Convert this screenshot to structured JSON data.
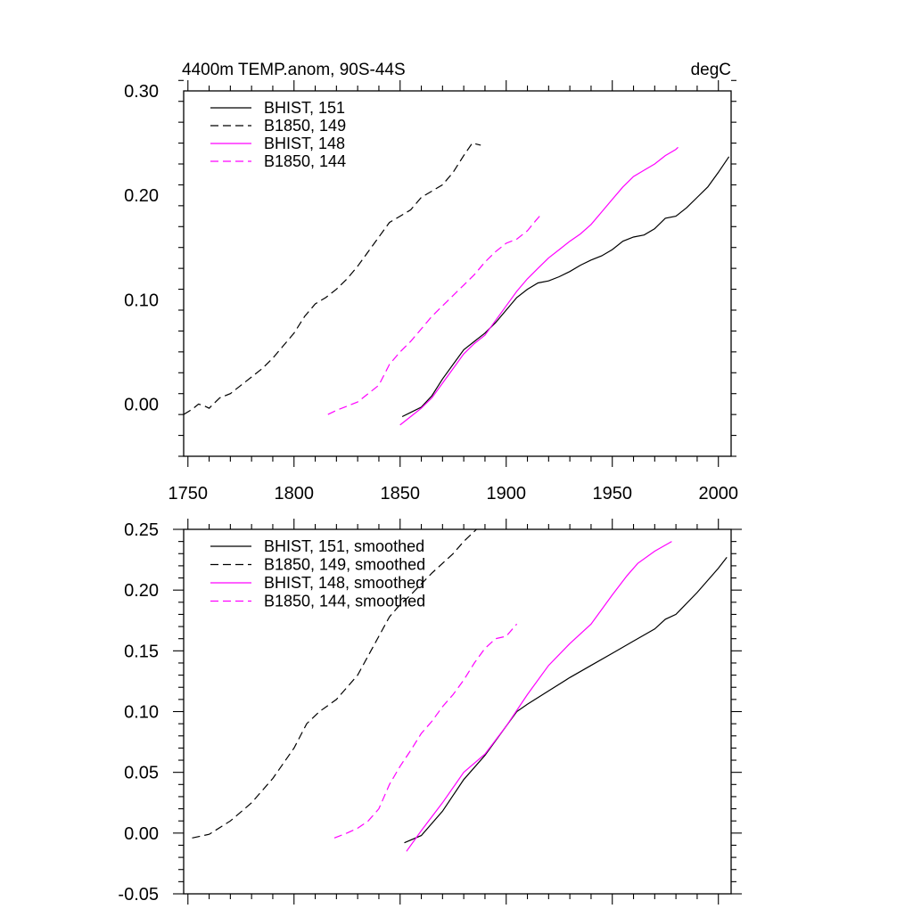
{
  "chart_data": [
    {
      "type": "line",
      "title": "4400m TEMP.anom, 90S-44S",
      "units": "degC",
      "xlim": [
        1748,
        2006
      ],
      "ylim": [
        -0.05,
        0.3
      ],
      "x_ticks": [
        1750,
        1800,
        1850,
        1900,
        1950,
        2000
      ],
      "x_tick_labels": [
        "1750",
        "1800",
        "1850",
        "1900",
        "1950",
        "2000"
      ],
      "y_ticks": [
        0.0,
        0.1,
        0.2,
        0.3
      ],
      "y_tick_labels": [
        "0.00",
        "0.10",
        "0.20",
        "0.30"
      ],
      "grid": false,
      "legend_position": "top-left",
      "series": [
        {
          "name": "BHIST, 151",
          "color": "#000000",
          "dash": "solid",
          "points": [
            [
              1851,
              -0.012
            ],
            [
              1855,
              -0.008
            ],
            [
              1860,
              -0.003
            ],
            [
              1865,
              0.008
            ],
            [
              1870,
              0.024
            ],
            [
              1875,
              0.038
            ],
            [
              1880,
              0.052
            ],
            [
              1885,
              0.06
            ],
            [
              1890,
              0.068
            ],
            [
              1895,
              0.078
            ],
            [
              1900,
              0.09
            ],
            [
              1905,
              0.102
            ],
            [
              1910,
              0.11
            ],
            [
              1915,
              0.116
            ],
            [
              1920,
              0.118
            ],
            [
              1925,
              0.122
            ],
            [
              1930,
              0.127
            ],
            [
              1935,
              0.133
            ],
            [
              1940,
              0.138
            ],
            [
              1945,
              0.142
            ],
            [
              1950,
              0.148
            ],
            [
              1955,
              0.156
            ],
            [
              1960,
              0.16
            ],
            [
              1965,
              0.162
            ],
            [
              1970,
              0.168
            ],
            [
              1975,
              0.178
            ],
            [
              1980,
              0.18
            ],
            [
              1985,
              0.188
            ],
            [
              1990,
              0.198
            ],
            [
              1995,
              0.208
            ],
            [
              2000,
              0.222
            ],
            [
              2005,
              0.237
            ]
          ]
        },
        {
          "name": "B1850, 149",
          "color": "#000000",
          "dash": "dashed",
          "points": [
            [
              1748,
              -0.01
            ],
            [
              1752,
              -0.005
            ],
            [
              1755,
              0.0
            ],
            [
              1758,
              -0.002
            ],
            [
              1760,
              -0.004
            ],
            [
              1765,
              0.006
            ],
            [
              1770,
              0.01
            ],
            [
              1775,
              0.018
            ],
            [
              1780,
              0.026
            ],
            [
              1785,
              0.034
            ],
            [
              1790,
              0.044
            ],
            [
              1795,
              0.056
            ],
            [
              1800,
              0.068
            ],
            [
              1805,
              0.084
            ],
            [
              1810,
              0.096
            ],
            [
              1815,
              0.102
            ],
            [
              1820,
              0.11
            ],
            [
              1825,
              0.12
            ],
            [
              1830,
              0.132
            ],
            [
              1835,
              0.146
            ],
            [
              1840,
              0.16
            ],
            [
              1845,
              0.174
            ],
            [
              1850,
              0.18
            ],
            [
              1855,
              0.186
            ],
            [
              1860,
              0.198
            ],
            [
              1865,
              0.204
            ],
            [
              1870,
              0.21
            ],
            [
              1875,
              0.222
            ],
            [
              1880,
              0.238
            ],
            [
              1884,
              0.25
            ],
            [
              1888,
              0.248
            ]
          ]
        },
        {
          "name": "BHIST, 148",
          "color": "#ff00ff",
          "dash": "solid",
          "points": [
            [
              1850,
              -0.02
            ],
            [
              1855,
              -0.012
            ],
            [
              1860,
              -0.004
            ],
            [
              1865,
              0.006
            ],
            [
              1870,
              0.02
            ],
            [
              1875,
              0.034
            ],
            [
              1880,
              0.048
            ],
            [
              1885,
              0.058
            ],
            [
              1890,
              0.066
            ],
            [
              1895,
              0.08
            ],
            [
              1900,
              0.094
            ],
            [
              1905,
              0.108
            ],
            [
              1910,
              0.12
            ],
            [
              1915,
              0.13
            ],
            [
              1920,
              0.14
            ],
            [
              1925,
              0.148
            ],
            [
              1930,
              0.156
            ],
            [
              1935,
              0.163
            ],
            [
              1940,
              0.172
            ],
            [
              1945,
              0.184
            ],
            [
              1950,
              0.196
            ],
            [
              1955,
              0.208
            ],
            [
              1960,
              0.218
            ],
            [
              1965,
              0.224
            ],
            [
              1970,
              0.23
            ],
            [
              1975,
              0.238
            ],
            [
              1980,
              0.244
            ],
            [
              1981,
              0.246
            ]
          ]
        },
        {
          "name": "B1850, 144",
          "color": "#ff00ff",
          "dash": "dashed",
          "points": [
            [
              1816,
              -0.01
            ],
            [
              1820,
              -0.006
            ],
            [
              1825,
              -0.002
            ],
            [
              1830,
              0.002
            ],
            [
              1835,
              0.01
            ],
            [
              1840,
              0.018
            ],
            [
              1845,
              0.038
            ],
            [
              1850,
              0.05
            ],
            [
              1855,
              0.06
            ],
            [
              1860,
              0.072
            ],
            [
              1865,
              0.084
            ],
            [
              1870,
              0.094
            ],
            [
              1875,
              0.104
            ],
            [
              1880,
              0.114
            ],
            [
              1885,
              0.124
            ],
            [
              1890,
              0.136
            ],
            [
              1895,
              0.146
            ],
            [
              1900,
              0.154
            ],
            [
              1905,
              0.158
            ],
            [
              1910,
              0.166
            ],
            [
              1914,
              0.176
            ],
            [
              1917,
              0.183
            ]
          ]
        }
      ]
    },
    {
      "type": "line",
      "title": "",
      "xlim": [
        1748,
        2006
      ],
      "ylim": [
        -0.05,
        0.25
      ],
      "x_ticks": [
        1750,
        1800,
        1850,
        1900,
        1950,
        2000
      ],
      "y_ticks": [
        -0.05,
        0.0,
        0.05,
        0.1,
        0.15,
        0.2,
        0.25
      ],
      "y_tick_labels": [
        "-0.05",
        "0.00",
        "0.05",
        "0.10",
        "0.15",
        "0.20",
        "0.25"
      ],
      "grid": false,
      "legend_position": "top-left",
      "series": [
        {
          "name": "BHIST, 151, smoothed",
          "color": "#000000",
          "dash": "solid",
          "points": [
            [
              1852,
              -0.008
            ],
            [
              1860,
              -0.002
            ],
            [
              1870,
              0.018
            ],
            [
              1880,
              0.044
            ],
            [
              1890,
              0.064
            ],
            [
              1900,
              0.088
            ],
            [
              1905,
              0.1
            ],
            [
              1910,
              0.106
            ],
            [
              1920,
              0.117
            ],
            [
              1930,
              0.128
            ],
            [
              1940,
              0.138
            ],
            [
              1950,
              0.148
            ],
            [
              1960,
              0.158
            ],
            [
              1970,
              0.168
            ],
            [
              1975,
              0.176
            ],
            [
              1980,
              0.18
            ],
            [
              1990,
              0.198
            ],
            [
              2000,
              0.218
            ],
            [
              2004,
              0.227
            ]
          ]
        },
        {
          "name": "B1850, 149, smoothed",
          "color": "#000000",
          "dash": "dashed",
          "points": [
            [
              1752,
              -0.004
            ],
            [
              1760,
              -0.001
            ],
            [
              1770,
              0.01
            ],
            [
              1780,
              0.025
            ],
            [
              1790,
              0.045
            ],
            [
              1800,
              0.07
            ],
            [
              1806,
              0.09
            ],
            [
              1812,
              0.1
            ],
            [
              1820,
              0.11
            ],
            [
              1830,
              0.13
            ],
            [
              1840,
              0.162
            ],
            [
              1845,
              0.178
            ],
            [
              1850,
              0.188
            ],
            [
              1855,
              0.196
            ],
            [
              1860,
              0.205
            ],
            [
              1865,
              0.214
            ],
            [
              1870,
              0.222
            ],
            [
              1875,
              0.23
            ],
            [
              1880,
              0.24
            ],
            [
              1886,
              0.25
            ]
          ]
        },
        {
          "name": "BHIST, 148, smoothed",
          "color": "#ff00ff",
          "dash": "solid",
          "points": [
            [
              1853,
              -0.015
            ],
            [
              1860,
              0.002
            ],
            [
              1870,
              0.025
            ],
            [
              1880,
              0.05
            ],
            [
              1890,
              0.065
            ],
            [
              1900,
              0.088
            ],
            [
              1910,
              0.114
            ],
            [
              1920,
              0.138
            ],
            [
              1930,
              0.156
            ],
            [
              1940,
              0.172
            ],
            [
              1950,
              0.196
            ],
            [
              1957,
              0.212
            ],
            [
              1962,
              0.222
            ],
            [
              1970,
              0.232
            ],
            [
              1978,
              0.24
            ]
          ]
        },
        {
          "name": "B1850, 144, smoothed",
          "color": "#ff00ff",
          "dash": "dashed",
          "points": [
            [
              1819,
              -0.004
            ],
            [
              1825,
              0.0
            ],
            [
              1830,
              0.004
            ],
            [
              1835,
              0.01
            ],
            [
              1840,
              0.02
            ],
            [
              1845,
              0.04
            ],
            [
              1850,
              0.055
            ],
            [
              1855,
              0.068
            ],
            [
              1860,
              0.082
            ],
            [
              1865,
              0.092
            ],
            [
              1870,
              0.104
            ],
            [
              1875,
              0.114
            ],
            [
              1880,
              0.126
            ],
            [
              1885,
              0.14
            ],
            [
              1890,
              0.152
            ],
            [
              1895,
              0.16
            ],
            [
              1900,
              0.162
            ],
            [
              1905,
              0.172
            ]
          ]
        }
      ]
    }
  ]
}
